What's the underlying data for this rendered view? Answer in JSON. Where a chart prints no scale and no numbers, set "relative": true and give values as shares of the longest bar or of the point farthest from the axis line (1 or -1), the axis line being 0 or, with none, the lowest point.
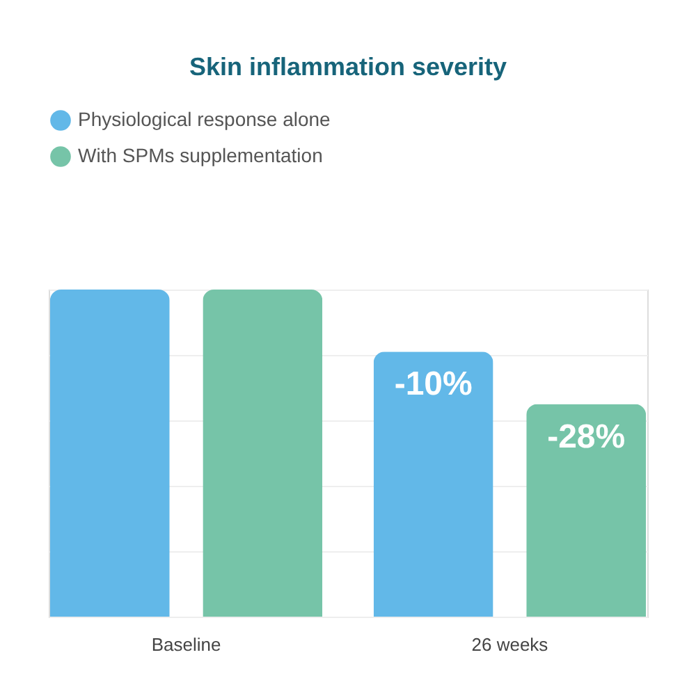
{
  "chart_data": {
    "type": "bar",
    "title": "Skin inflammation severity",
    "categories": [
      "Baseline",
      "26 weeks"
    ],
    "relative": true,
    "series": [
      {
        "name": "Physiological response alone",
        "color": "#62b8e8",
        "values": [
          1,
          0.81
        ]
      },
      {
        "name": "With SPMs supplementation",
        "color": "#76c4a8",
        "values": [
          1,
          0.65
        ]
      }
    ],
    "annotations": [
      "-10%",
      "-28%"
    ],
    "grid": "y",
    "legend": "top left"
  }
}
